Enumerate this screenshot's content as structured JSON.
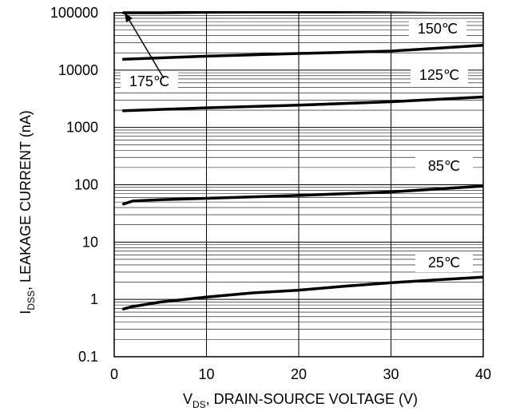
{
  "chart_data": {
    "type": "line",
    "xlabel": {
      "main": "V",
      "sub": "DS",
      "rest": ", DRAIN-SOURCE VOLTAGE (V)"
    },
    "ylabel": {
      "main": "I",
      "sub": "DSS",
      "rest": ", LEAKAGE CURRENT (nA)"
    },
    "xlim": [
      0,
      40
    ],
    "ylim": [
      0.1,
      100000
    ],
    "yscale": "log",
    "grid": true,
    "x_ticks": [
      0,
      10,
      20,
      30,
      40
    ],
    "x_tick_labels": [
      "0",
      "10",
      "20",
      "30",
      "40"
    ],
    "y_ticks": [
      0.1,
      1,
      10,
      100,
      1000,
      10000,
      100000
    ],
    "y_tick_labels": [
      "0.1",
      "1",
      "10",
      "100",
      "1000",
      "10000",
      "100000"
    ],
    "series": [
      {
        "name": "25℃",
        "x": [
          1,
          2,
          5,
          10,
          15,
          20,
          25,
          30,
          35,
          40
        ],
        "y": [
          0.68,
          0.75,
          0.9,
          1.1,
          1.3,
          1.45,
          1.7,
          1.95,
          2.2,
          2.45
        ]
      },
      {
        "name": "85℃",
        "x": [
          1,
          2,
          5,
          10,
          20,
          30,
          40
        ],
        "y": [
          46,
          52,
          55,
          58,
          65,
          75,
          95
        ]
      },
      {
        "name": "125℃",
        "x": [
          1,
          10,
          20,
          30,
          40
        ],
        "y": [
          1950,
          2200,
          2450,
          2800,
          3400
        ]
      },
      {
        "name": "150℃",
        "x": [
          1,
          10,
          20,
          30,
          40
        ],
        "y": [
          15500,
          17500,
          19500,
          21500,
          27000
        ]
      },
      {
        "name": "175℃",
        "x": [
          1,
          5,
          10,
          20,
          30,
          40
        ],
        "y": [
          100000,
          100000,
          102000,
          106000,
          110000,
          115000
        ]
      }
    ]
  }
}
